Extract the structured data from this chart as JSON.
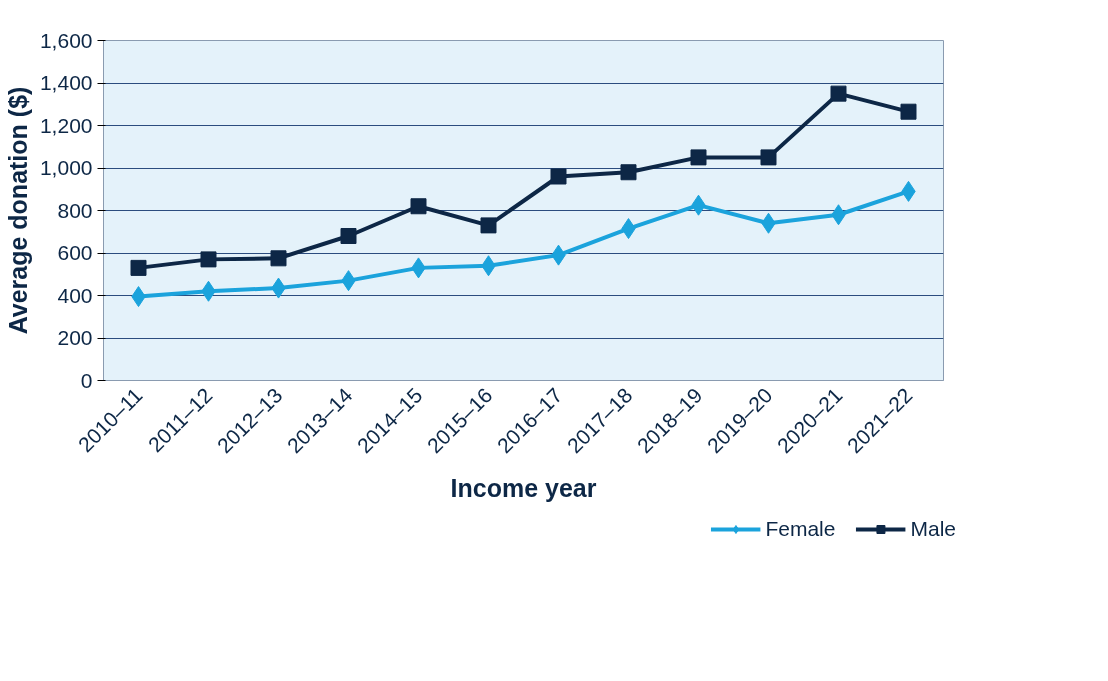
{
  "chart_data": {
    "type": "line",
    "xlabel": "Income year",
    "ylabel": "Average donation ($)",
    "categories": [
      "2010–11",
      "2011–12",
      "2012–13",
      "2013–14",
      "2014–15",
      "2015–16",
      "2016–17",
      "2017–18",
      "2018–19",
      "2019–20",
      "2020–21",
      "2021–22"
    ],
    "series": [
      {
        "name": "Female",
        "color": "#1ba3dc",
        "marker": "diamond",
        "values": [
          395,
          420,
          435,
          470,
          530,
          540,
          590,
          715,
          825,
          740,
          780,
          890
        ]
      },
      {
        "name": "Male",
        "color": "#0d2746",
        "marker": "square",
        "values": [
          530,
          570,
          575,
          680,
          820,
          730,
          960,
          980,
          1050,
          1050,
          1350,
          1265
        ]
      }
    ],
    "ylim": [
      0,
      1600
    ],
    "yticks": [
      {
        "value": 0,
        "label": "0"
      },
      {
        "value": 200,
        "label": "200"
      },
      {
        "value": 400,
        "label": "400"
      },
      {
        "value": 600,
        "label": "600"
      },
      {
        "value": 800,
        "label": "800"
      },
      {
        "value": 1000,
        "label": "1,000"
      },
      {
        "value": 1200,
        "label": "1,200"
      },
      {
        "value": 1400,
        "label": "1,400"
      },
      {
        "value": 1600,
        "label": "1,600"
      }
    ],
    "grid": "y",
    "legend": "bottom right",
    "line_style": "solid"
  }
}
